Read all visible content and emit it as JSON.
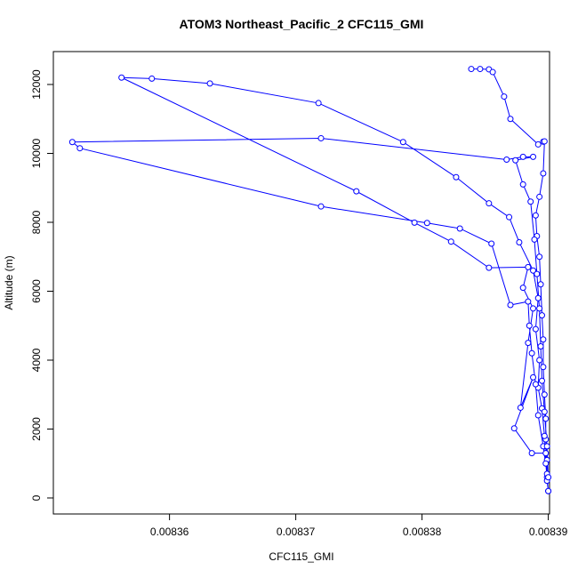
{
  "chart_data": {
    "type": "line",
    "title": "ATOM3 Northeast_Pacific_2 CFC115_GMI",
    "x_label": "CFC115_GMI",
    "y_label": "Altitude (m)",
    "color": "#0000ff",
    "x": [
      0.0083839,
      0.0083846,
      0.0083853,
      0.0083856,
      0.0083865,
      0.008387,
      0.0083892,
      0.0083896,
      0.0083897,
      0.0083896,
      0.0083893,
      0.008389,
      0.0083891,
      0.0083893,
      0.0083894,
      0.0083895,
      0.0083896,
      0.0083896,
      0.0083897,
      0.0083898,
      0.0083898,
      0.0083899,
      0.0083899,
      0.00839,
      0.0083899,
      0.0083898,
      0.0083887,
      0.0083873,
      0.0083888,
      0.0083878,
      0.0083884,
      0.0083888,
      0.008388,
      0.0083884,
      0.0083853,
      0.0083823,
      0.0083794,
      0.0083748,
      0.0083562,
      0.0083586,
      0.0083632,
      0.0083718,
      0.0083785,
      0.0083827,
      0.0083853,
      0.0083869,
      0.0083877,
      0.0083888,
      0.0083892,
      0.008389,
      0.0083893,
      0.0083892,
      0.0083895,
      0.0083897,
      0.0083898,
      0.00839,
      0.0083899,
      0.0083896,
      0.0083892,
      0.008389,
      0.0083887,
      0.0083885,
      0.0083884,
      0.008387,
      0.0083855,
      0.008383,
      0.0083804,
      0.008372,
      0.0083529,
      0.0083523,
      0.008372,
      0.0083867,
      0.008388,
      0.0083888,
      0.0083874,
      0.008388,
      0.0083886,
      0.0083889,
      0.0083891,
      0.0083893,
      0.0083894,
      0.0083895,
      0.0083897,
      0.0083899,
      0.00839
    ],
    "values": [
      12450,
      12450,
      12440,
      12360,
      11650,
      11000,
      10260,
      10340,
      10350,
      9420,
      8740,
      8200,
      7600,
      7000,
      6200,
      5300,
      4600,
      3800,
      3000,
      2300,
      1700,
      1100,
      600,
      200,
      500,
      1300,
      1300,
      2020,
      3500,
      2620,
      4500,
      5500,
      6100,
      6700,
      6680,
      7440,
      7990,
      8900,
      12200,
      12170,
      12030,
      11460,
      10330,
      9310,
      8550,
      8150,
      7420,
      6600,
      5800,
      4900,
      4000,
      3200,
      2600,
      1800,
      1000,
      200,
      700,
      1500,
      2400,
      3300,
      4200,
      5000,
      5700,
      5600,
      7380,
      7820,
      7980,
      8460,
      10150,
      10330,
      10440,
      9820,
      9900,
      9900,
      9800,
      9100,
      8600,
      7500,
      6500,
      5500,
      4400,
      3400,
      2500,
      1500,
      600
    ],
    "xlim": [
      0.0083508,
      0.0083901
    ],
    "ylim": [
      -465,
      12955
    ],
    "xticks": [
      0.00836,
      0.00837,
      0.00838,
      0.00839
    ],
    "yticks": [
      0,
      2000,
      4000,
      6000,
      8000,
      10000,
      12000
    ]
  }
}
